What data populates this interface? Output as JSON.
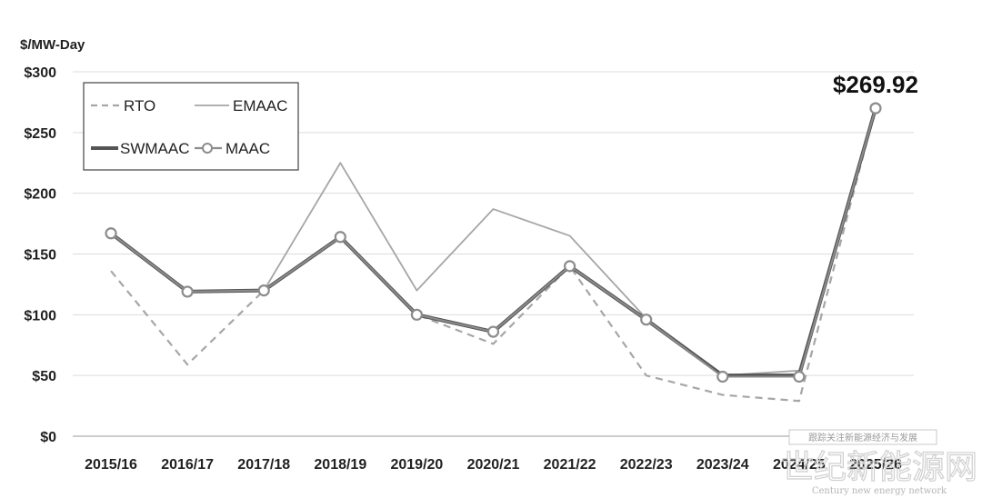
{
  "chart_data": {
    "type": "line",
    "ylabel": "$/MW-Day",
    "ylim": [
      0,
      300
    ],
    "yticks": [
      0,
      50,
      100,
      150,
      200,
      250,
      300
    ],
    "ytick_labels": [
      "$0",
      "$50",
      "$100",
      "$150",
      "$200",
      "$250",
      "$300"
    ],
    "categories": [
      "2015/16",
      "2016/17",
      "2017/18",
      "2018/19",
      "2019/20",
      "2020/21",
      "2021/22",
      "2022/23",
      "2023/24",
      "2024/25",
      "2025/26"
    ],
    "grid": true,
    "legend_position": "top-left",
    "series": [
      {
        "name": "RTO",
        "style": "dashed",
        "color": "#a6a6a6",
        "values": [
          136,
          59,
          120,
          164,
          100,
          76,
          140,
          50,
          34,
          29,
          270
        ]
      },
      {
        "name": "EMAAC",
        "style": "solid-thin",
        "color": "#a6a6a6",
        "values": [
          167,
          119,
          120,
          225,
          120,
          187,
          165,
          97,
          50,
          54,
          270
        ]
      },
      {
        "name": "SWMAAC",
        "style": "solid-thick",
        "color": "#555555",
        "values": [
          167,
          119,
          120,
          164,
          100,
          86,
          140,
          96,
          50,
          50,
          270
        ]
      },
      {
        "name": "MAAC",
        "style": "circle-markers",
        "color": "#8c8c8c",
        "values": [
          167,
          119,
          120,
          164,
          100,
          86,
          140,
          96,
          49,
          49,
          270
        ]
      }
    ],
    "annotations": [
      {
        "text": "$269.92",
        "category": "2025/26",
        "value": 269.92
      }
    ]
  },
  "watermark": {
    "box_text": "跟踪关注新能源经济与发展",
    "big_text": "世纪新能源网",
    "small_text": "Century new energy network"
  }
}
